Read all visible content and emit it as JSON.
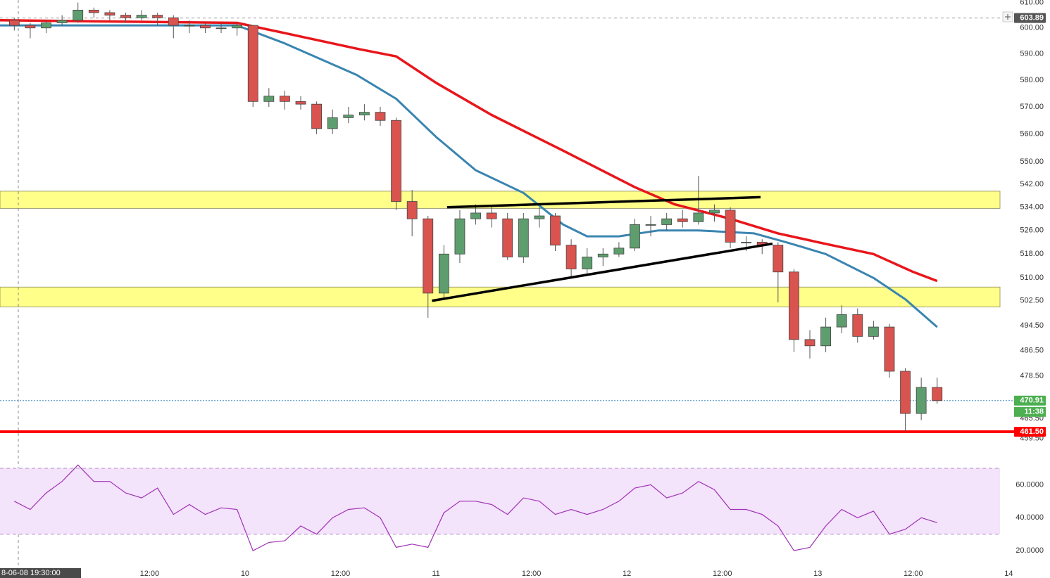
{
  "chart_data": [
    {
      "type": "candlestick",
      "log_scale": true,
      "xlim": [
        -30.8,
        94.9
      ],
      "ylim": [
        455,
        611
      ],
      "x": [
        -29,
        -27,
        -25,
        -23,
        -21,
        -19,
        -17,
        -15,
        -13,
        -11,
        -9,
        -7,
        -5,
        -3,
        -1,
        1,
        3,
        5,
        7,
        9,
        11,
        13,
        15,
        17,
        19,
        21,
        23,
        25,
        27,
        29,
        31,
        33,
        35,
        37,
        39,
        41,
        43,
        45,
        47,
        49,
        51,
        53,
        55,
        57,
        59,
        61,
        63,
        65,
        67,
        69,
        71,
        73,
        75,
        77,
        79,
        81,
        83,
        85,
        87
      ],
      "open": [
        603,
        601,
        600,
        602,
        603,
        607,
        606,
        605,
        604,
        605,
        604,
        601,
        601,
        600,
        600,
        601,
        572,
        574,
        572,
        571,
        562,
        566,
        567,
        568,
        565,
        536,
        530,
        505,
        518,
        530,
        532,
        530,
        517,
        530,
        531,
        521,
        513,
        517,
        518,
        520,
        528,
        528,
        530,
        529,
        532,
        533,
        522,
        522,
        521,
        512,
        490,
        488,
        494,
        498,
        491,
        494,
        480,
        467,
        475
      ],
      "high": [
        604,
        602,
        603,
        605,
        610,
        608,
        607,
        606,
        607,
        606,
        605,
        603,
        602,
        602,
        602,
        601,
        577,
        576,
        574,
        572,
        569,
        570,
        571,
        570,
        566,
        540,
        531,
        521,
        533,
        535,
        534,
        532,
        532,
        534,
        532,
        523,
        520,
        520,
        522,
        530,
        531,
        532,
        533,
        545,
        535,
        534,
        524,
        523,
        522,
        513,
        493,
        497,
        501,
        500,
        496,
        495,
        481,
        478,
        478
      ],
      "low": [
        599,
        596,
        598,
        601,
        602,
        604,
        603,
        602,
        603,
        601,
        596,
        598,
        598,
        598,
        597,
        570,
        570,
        569,
        569,
        560,
        560,
        564,
        565,
        563,
        533,
        524,
        497,
        503,
        515,
        528,
        527,
        516,
        515,
        527,
        519,
        510,
        511,
        514,
        517,
        519,
        524,
        526,
        527,
        528,
        529,
        520,
        519,
        518,
        502,
        486,
        484,
        486,
        492,
        489,
        490,
        478,
        461.5,
        465,
        470
      ],
      "close": [
        601,
        600,
        602,
        603,
        607,
        606,
        605,
        604,
        605,
        604,
        601,
        601,
        600,
        600,
        601,
        572,
        574,
        572,
        571,
        562,
        566,
        567,
        568,
        565,
        536,
        530,
        505,
        518,
        530,
        532,
        530,
        517,
        530,
        531,
        521,
        513,
        517,
        518,
        520,
        528,
        528,
        530,
        529,
        532,
        533,
        522,
        522,
        521,
        512,
        490,
        488,
        494,
        498,
        491,
        494,
        480,
        467,
        475,
        470.91
      ],
      "up_color": "#5e9e6e",
      "down_color": "#d9534f",
      "lines": [
        {
          "color": "#3a85b0",
          "x": [
            -30.8,
            -1,
            5,
            14,
            19,
            24,
            29,
            35,
            40,
            43,
            47,
            52,
            57,
            64,
            68,
            73,
            79,
            83,
            87
          ],
          "values": [
            601,
            601,
            594,
            582,
            573,
            559,
            547,
            539,
            528,
            524,
            524,
            526,
            526,
            525,
            522,
            518,
            510,
            503,
            494
          ]
        },
        {
          "color": "#e8161b",
          "x": [
            -30.8,
            -1,
            5,
            14,
            19,
            24,
            31,
            40,
            49,
            54,
            61,
            67,
            72,
            79,
            84,
            87
          ],
          "values": [
            603,
            602,
            598,
            592,
            589,
            579,
            567,
            554,
            541,
            535,
            530,
            525,
            522,
            518,
            512,
            509
          ]
        }
      ],
      "zones": [
        {
          "from": 533.6,
          "to": 539.6
        },
        {
          "from": 500.5,
          "to": 507
        }
      ],
      "zone_color": "#ffff8a",
      "trendlines": [
        {
          "x": [
            25.4,
            64.8
          ],
          "values": [
            534,
            537.5
          ]
        },
        {
          "x": [
            23.5,
            66.3
          ],
          "values": [
            502.5,
            521.5
          ]
        }
      ],
      "levels": [
        {
          "value": 603.89,
          "label": "603.89",
          "color": "#555555",
          "line_color": "#9a9a9a"
        },
        {
          "value": 470.91,
          "label": "470.91",
          "color": "#4caf50",
          "line_color": "#4a8fc0"
        },
        {
          "value": 461.5,
          "label": "461.50",
          "color": "#ff0000",
          "line_color": "#ff0000"
        }
      ],
      "countdown": "11:38",
      "crosshair_x": {
        "value": -28.5,
        "label": "8-06-08 19:30:00"
      },
      "yticks": [
        {
          "value": 610,
          "label": "610.00"
        },
        {
          "value": 600,
          "label": "600.00"
        },
        {
          "value": 590,
          "label": "590.00"
        },
        {
          "value": 580,
          "label": "580.00"
        },
        {
          "value": 570,
          "label": "570.00"
        },
        {
          "value": 560,
          "label": "560.00"
        },
        {
          "value": 550,
          "label": "550.00"
        },
        {
          "value": 542,
          "label": "542.00"
        },
        {
          "value": 534,
          "label": "534.00"
        },
        {
          "value": 526,
          "label": "526.00"
        },
        {
          "value": 518,
          "label": "518.00"
        },
        {
          "value": 510,
          "label": "510.00"
        },
        {
          "value": 502.5,
          "label": "502.50"
        },
        {
          "value": 494.5,
          "label": "494.50"
        },
        {
          "value": 486.5,
          "label": "486.50"
        },
        {
          "value": 478.5,
          "label": "478.50"
        },
        {
          "value": 465.5,
          "label": "465.50"
        },
        {
          "value": 459.5,
          "label": "459.50"
        }
      ],
      "xticks": [
        {
          "value": -12,
          "label": "12:00"
        },
        {
          "value": 0,
          "label": "10"
        },
        {
          "value": 12,
          "label": "12:00"
        },
        {
          "value": 24,
          "label": "11"
        },
        {
          "value": 36,
          "label": "12:00"
        },
        {
          "value": 48,
          "label": "12"
        },
        {
          "value": 60,
          "label": "12:00"
        },
        {
          "value": 72,
          "label": "13"
        },
        {
          "value": 84,
          "label": "12:00"
        },
        {
          "value": 96,
          "label": "14"
        }
      ]
    },
    {
      "type": "line",
      "color": "#a033b5",
      "values": [
        50,
        45,
        55,
        62,
        72,
        62,
        62,
        55,
        52,
        58,
        42,
        48,
        42,
        46,
        45,
        20,
        25,
        26,
        35,
        30,
        40,
        45,
        46,
        40,
        22,
        24,
        22,
        43,
        50,
        50,
        48,
        42,
        52,
        50,
        42,
        45,
        42,
        45,
        50,
        58,
        60,
        52,
        55,
        62,
        57,
        45,
        45,
        42,
        35,
        20,
        22,
        35,
        45,
        40,
        44,
        30,
        33,
        40,
        37
      ],
      "ylim": [
        12.8,
        76.8
      ],
      "band": [
        30,
        70
      ],
      "band_color": "#f3e3fb",
      "yticks": [
        {
          "value": 20,
          "label": "20.0000"
        },
        {
          "value": 40,
          "label": "40.0000"
        },
        {
          "value": 60,
          "label": "60.0000"
        }
      ]
    }
  ]
}
